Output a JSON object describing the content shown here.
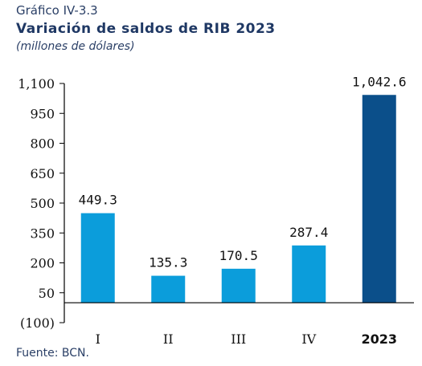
{
  "header": {
    "kicker": "Gráfico IV-3.3",
    "title": "Variación de saldos de RIB 2023",
    "subtitle": "(millones de dólares)"
  },
  "footer": {
    "source": "Fuente: BCN."
  },
  "colors": {
    "bar_quarter": "#0b9ddb",
    "bar_total": "#0b4f8a",
    "axis": "#000000"
  },
  "chart_data": {
    "type": "bar",
    "categories": [
      "I",
      "II",
      "III",
      "IV",
      "2023"
    ],
    "values": [
      449.3,
      135.3,
      170.5,
      287.4,
      1042.6
    ],
    "value_labels": [
      "449.3",
      "135.3",
      "170.5",
      "287.4",
      "1,042.6"
    ],
    "ylim": [
      -100,
      1100
    ],
    "yticks": [
      -100,
      50,
      200,
      350,
      500,
      650,
      800,
      950,
      1100
    ],
    "ytick_labels": [
      "(100)",
      "50",
      "200",
      "350",
      "500",
      "650",
      "800",
      "950",
      "1,100"
    ],
    "grid": false
  }
}
